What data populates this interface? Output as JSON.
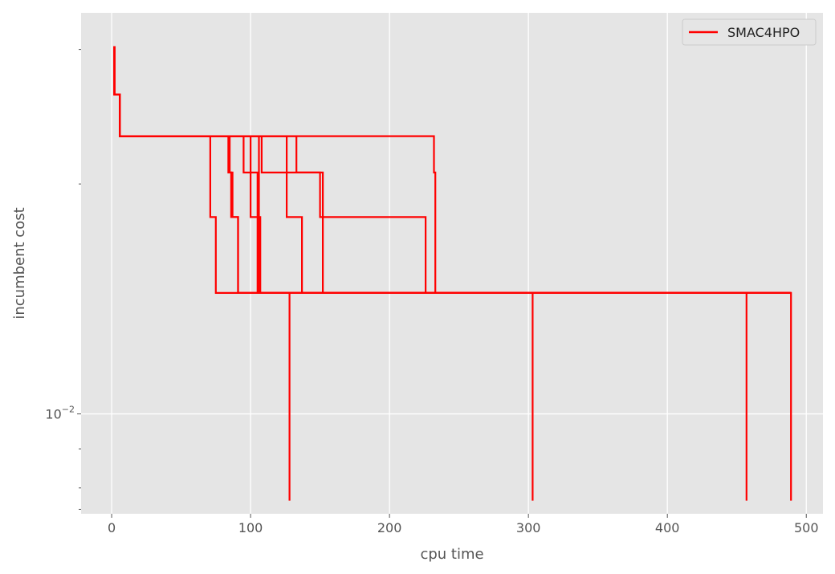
{
  "chart_data": {
    "type": "line",
    "title": "",
    "xlabel": "cpu time",
    "ylabel": "incumbent cost",
    "xlim": [
      -22,
      512
    ],
    "ylim": [
      0.0074,
      0.0335
    ],
    "y_scale": "log",
    "grid": true,
    "legend": {
      "position": "top-right",
      "entries": [
        "SMAC4HPO"
      ]
    },
    "colors": {
      "series": "#ff0000",
      "background": "#e5e5e5",
      "grid": "#ffffff"
    },
    "x_ticks": [
      0,
      100,
      200,
      300,
      400,
      500
    ],
    "x_tick_labels": [
      "0",
      "100",
      "200",
      "300",
      "400",
      "500"
    ],
    "y_ticks": [
      0.01
    ],
    "y_tick_labels": [
      {
        "base": "10",
        "exp": "−2"
      }
    ],
    "series": [
      {
        "name": "SMAC4HPO",
        "x": [
          2,
          2,
          3,
          6,
          6,
          71,
          71,
          75,
          75,
          128,
          128
        ],
        "y": [
          0.0303,
          0.0262,
          0.0262,
          0.0262,
          0.0231,
          0.0231,
          0.0181,
          0.0181,
          0.0144,
          0.0144,
          0.0077
        ]
      },
      {
        "x": [
          2,
          2,
          3,
          6,
          6,
          84,
          84,
          86,
          86,
          91,
          91,
          303,
          303
        ],
        "y": [
          0.0303,
          0.0262,
          0.0262,
          0.0262,
          0.0231,
          0.0231,
          0.0207,
          0.0207,
          0.0181,
          0.0181,
          0.0144,
          0.0144,
          0.0077
        ]
      },
      {
        "x": [
          2,
          2,
          3,
          6,
          6,
          85,
          85,
          87,
          87,
          91,
          91,
          457,
          457
        ],
        "y": [
          0.0303,
          0.0262,
          0.0262,
          0.0262,
          0.0231,
          0.0231,
          0.0207,
          0.0207,
          0.0181,
          0.0181,
          0.0144,
          0.0144,
          0.0077
        ]
      },
      {
        "x": [
          2,
          2,
          3,
          6,
          6,
          95,
          95,
          105,
          105,
          489,
          489
        ],
        "y": [
          0.0303,
          0.0262,
          0.0262,
          0.0262,
          0.0231,
          0.0231,
          0.0207,
          0.0207,
          0.0144,
          0.0144,
          0.0077
        ]
      },
      {
        "x": [
          2,
          2,
          3,
          6,
          6,
          100,
          100,
          106,
          106,
          489
        ],
        "y": [
          0.0303,
          0.0262,
          0.0262,
          0.0262,
          0.0231,
          0.0231,
          0.0181,
          0.0181,
          0.0144,
          0.0144
        ]
      },
      {
        "x": [
          2,
          2,
          3,
          6,
          6,
          106,
          106,
          107,
          107,
          489
        ],
        "y": [
          0.0303,
          0.0262,
          0.0262,
          0.0262,
          0.0231,
          0.0231,
          0.0181,
          0.0181,
          0.0144,
          0.0144
        ]
      },
      {
        "x": [
          2,
          2,
          3,
          6,
          6,
          108,
          108,
          150,
          150,
          152,
          152,
          489
        ],
        "y": [
          0.0303,
          0.0262,
          0.0262,
          0.0262,
          0.0231,
          0.0231,
          0.0207,
          0.0207,
          0.0181,
          0.0181,
          0.0144,
          0.0144
        ]
      },
      {
        "x": [
          2,
          2,
          3,
          6,
          6,
          126,
          126,
          137,
          137,
          489
        ],
        "y": [
          0.0303,
          0.0262,
          0.0262,
          0.0262,
          0.0231,
          0.0231,
          0.0181,
          0.0181,
          0.0144,
          0.0144
        ]
      },
      {
        "x": [
          2,
          2,
          3,
          6,
          6,
          133,
          133,
          152,
          152,
          226,
          226,
          489
        ],
        "y": [
          0.0303,
          0.0262,
          0.0262,
          0.0262,
          0.0231,
          0.0231,
          0.0207,
          0.0207,
          0.0181,
          0.0181,
          0.0144,
          0.0144
        ]
      },
      {
        "x": [
          2,
          2,
          3,
          6,
          6,
          232,
          232,
          233,
          233,
          489
        ],
        "y": [
          0.0303,
          0.0262,
          0.0262,
          0.0262,
          0.0231,
          0.0231,
          0.0207,
          0.0207,
          0.0144,
          0.0144
        ]
      }
    ]
  }
}
